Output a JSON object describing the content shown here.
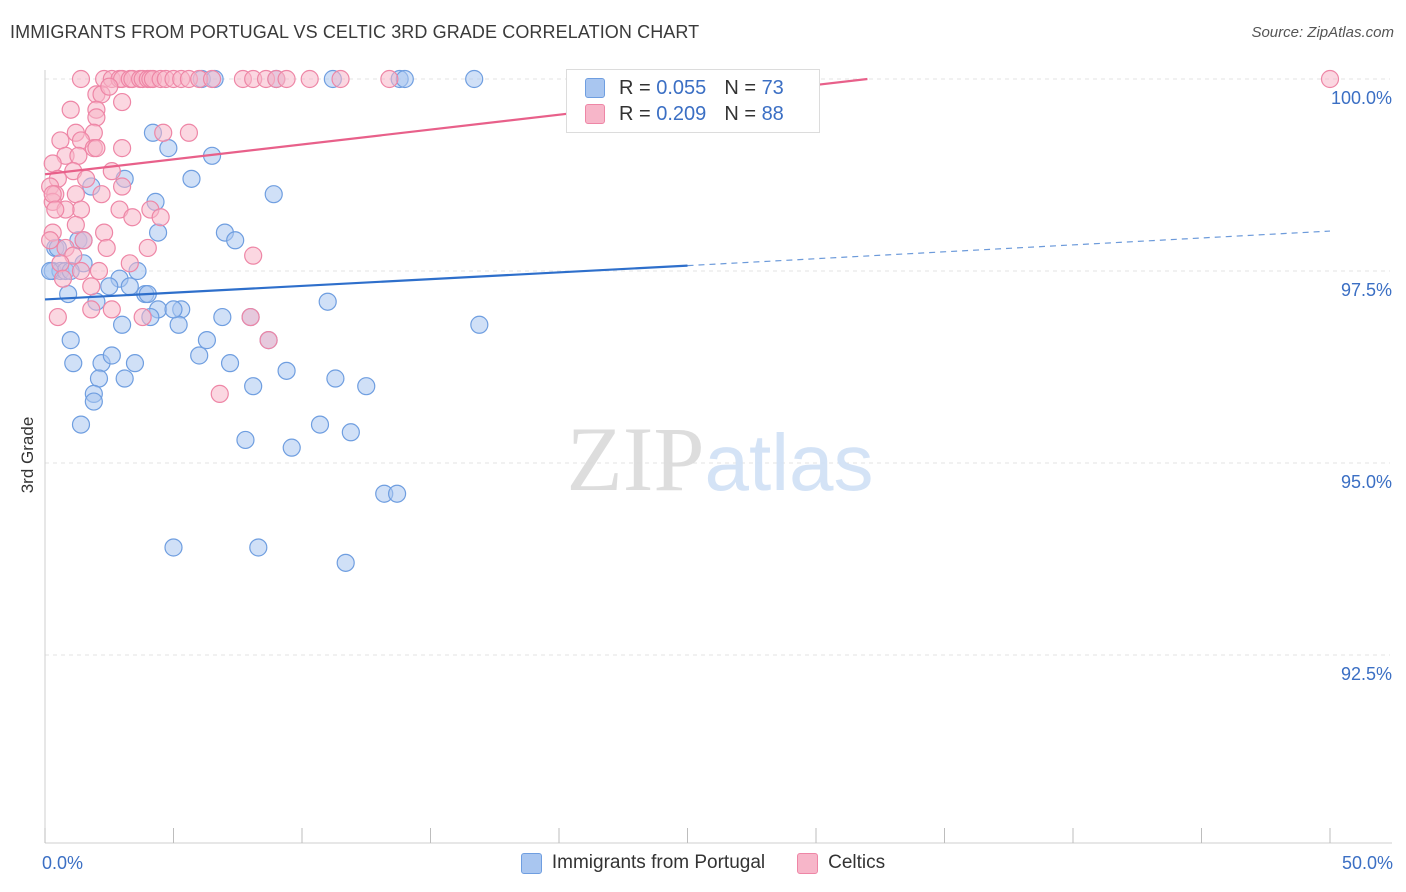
{
  "title": "IMMIGRANTS FROM PORTUGAL VS CELTIC 3RD GRADE CORRELATION CHART",
  "source": "Source: ZipAtlas.com",
  "watermark": {
    "zip": "ZIP",
    "atlas": "atlas"
  },
  "legend": {
    "r_label": "R =",
    "n_label": "N =",
    "rows": [
      {
        "r": "0.055",
        "n": "73",
        "color": "#a9c6f0",
        "border": "#6f9ee0"
      },
      {
        "r": "0.209",
        "n": "88",
        "color": "#f7b6c9",
        "border": "#ee86a6"
      }
    ]
  },
  "bottom_legend": [
    "Immigrants from Portugal",
    "Celtics"
  ],
  "chart_data": {
    "type": "scatter",
    "xlabel": "",
    "ylabel": "3rd Grade",
    "xlim": [
      0,
      50
    ],
    "ylim": [
      90.2,
      100.4
    ],
    "x_tick_labels": [
      {
        "value": 0,
        "label": "0.0%"
      },
      {
        "value": 50,
        "label": "50.0%"
      }
    ],
    "y_tick_labels": [
      {
        "value": 100,
        "label": "100.0%"
      },
      {
        "value": 97.5,
        "label": "97.5%"
      },
      {
        "value": 95,
        "label": "95.0%"
      },
      {
        "value": 92.5,
        "label": "92.5%"
      }
    ],
    "series": [
      {
        "name": "Immigrants from Portugal",
        "color": "#6f9ee0",
        "fill": "#a9c6f0",
        "trend_color": "#2e6fcb",
        "trend": {
          "x0": 0,
          "y0": 97.13,
          "x1": 25,
          "y1": 97.57,
          "dash_x1": 50,
          "dash_y1": 98.02
        },
        "points": [
          [
            4.2,
            99.3
          ],
          [
            4.8,
            99.1
          ],
          [
            6.5,
            99.0
          ],
          [
            1.8,
            98.6
          ],
          [
            3.1,
            98.7
          ],
          [
            4.3,
            98.4
          ],
          [
            5.7,
            98.7
          ],
          [
            8.9,
            98.5
          ],
          [
            7.0,
            98.0
          ],
          [
            1.3,
            97.9
          ],
          [
            4.4,
            98.0
          ],
          [
            7.4,
            97.9
          ],
          [
            0.4,
            97.8
          ],
          [
            0.3,
            97.5
          ],
          [
            0.6,
            97.5
          ],
          [
            0.8,
            97.5
          ],
          [
            1.5,
            97.6
          ],
          [
            2.9,
            97.4
          ],
          [
            3.6,
            97.5
          ],
          [
            0.9,
            97.2
          ],
          [
            2.5,
            97.3
          ],
          [
            3.3,
            97.3
          ],
          [
            3.9,
            97.2
          ],
          [
            11.0,
            97.1
          ],
          [
            4.4,
            97.0
          ],
          [
            5.3,
            97.0
          ],
          [
            6.9,
            96.9
          ],
          [
            8.0,
            96.9
          ],
          [
            3.0,
            96.8
          ],
          [
            5.2,
            96.8
          ],
          [
            6.3,
            96.6
          ],
          [
            8.7,
            96.6
          ],
          [
            16.9,
            96.8
          ],
          [
            4.1,
            96.9
          ],
          [
            1.0,
            96.6
          ],
          [
            1.1,
            96.3
          ],
          [
            2.2,
            96.3
          ],
          [
            2.6,
            96.4
          ],
          [
            3.5,
            96.3
          ],
          [
            7.2,
            96.3
          ],
          [
            2.1,
            96.1
          ],
          [
            3.1,
            96.1
          ],
          [
            8.1,
            96.0
          ],
          [
            9.4,
            96.2
          ],
          [
            11.3,
            96.1
          ],
          [
            12.5,
            96.0
          ],
          [
            1.9,
            95.9
          ],
          [
            1.9,
            95.8
          ],
          [
            1.4,
            95.5
          ],
          [
            10.7,
            95.5
          ],
          [
            11.9,
            95.4
          ],
          [
            7.8,
            95.3
          ],
          [
            9.6,
            95.2
          ],
          [
            13.2,
            94.6
          ],
          [
            13.7,
            94.6
          ],
          [
            5.0,
            93.9
          ],
          [
            8.3,
            93.9
          ],
          [
            11.7,
            93.7
          ],
          [
            6.1,
            100.0
          ],
          [
            6.6,
            100.0
          ],
          [
            9.0,
            100.0
          ],
          [
            11.2,
            100.0
          ],
          [
            13.8,
            100.0
          ],
          [
            14.0,
            100.0
          ],
          [
            16.7,
            100.0
          ],
          [
            0.2,
            97.5
          ],
          [
            0.5,
            97.8
          ],
          [
            1.0,
            97.5
          ],
          [
            1.5,
            97.9
          ],
          [
            2.0,
            97.1
          ],
          [
            4.0,
            97.2
          ],
          [
            5.0,
            97.0
          ],
          [
            6.0,
            96.4
          ]
        ]
      },
      {
        "name": "Celtics",
        "color": "#ee86a6",
        "fill": "#f7b6c9",
        "trend_color": "#e8608a",
        "trend": {
          "x0": 0,
          "y0": 98.76,
          "x1": 32,
          "y1": 100.0
        },
        "points": [
          [
            2.3,
            100.0
          ],
          [
            2.6,
            100.0
          ],
          [
            2.9,
            100.0
          ],
          [
            3.0,
            100.0
          ],
          [
            3.3,
            100.0
          ],
          [
            3.4,
            100.0
          ],
          [
            3.7,
            100.0
          ],
          [
            3.8,
            100.0
          ],
          [
            4.0,
            100.0
          ],
          [
            4.1,
            100.0
          ],
          [
            4.2,
            100.0
          ],
          [
            4.5,
            100.0
          ],
          [
            4.7,
            100.0
          ],
          [
            5.0,
            100.0
          ],
          [
            5.3,
            100.0
          ],
          [
            5.6,
            100.0
          ],
          [
            6.0,
            100.0
          ],
          [
            6.5,
            100.0
          ],
          [
            7.7,
            100.0
          ],
          [
            8.1,
            100.0
          ],
          [
            8.6,
            100.0
          ],
          [
            9.0,
            100.0
          ],
          [
            9.4,
            100.0
          ],
          [
            10.3,
            100.0
          ],
          [
            11.5,
            100.0
          ],
          [
            13.4,
            100.0
          ],
          [
            1.4,
            100.0
          ],
          [
            2.0,
            99.8
          ],
          [
            2.2,
            99.8
          ],
          [
            2.5,
            99.9
          ],
          [
            3.0,
            99.7
          ],
          [
            1.0,
            99.6
          ],
          [
            2.0,
            99.6
          ],
          [
            2.0,
            99.5
          ],
          [
            1.9,
            99.3
          ],
          [
            1.2,
            99.3
          ],
          [
            4.6,
            99.3
          ],
          [
            5.6,
            99.3
          ],
          [
            0.6,
            99.2
          ],
          [
            1.4,
            99.2
          ],
          [
            1.9,
            99.1
          ],
          [
            2.0,
            99.1
          ],
          [
            3.0,
            99.1
          ],
          [
            0.8,
            99.0
          ],
          [
            1.3,
            99.0
          ],
          [
            0.3,
            98.9
          ],
          [
            1.1,
            98.8
          ],
          [
            2.6,
            98.8
          ],
          [
            0.5,
            98.7
          ],
          [
            1.6,
            98.7
          ],
          [
            3.0,
            98.6
          ],
          [
            0.2,
            98.6
          ],
          [
            0.4,
            98.5
          ],
          [
            1.2,
            98.5
          ],
          [
            2.2,
            98.5
          ],
          [
            0.3,
            98.4
          ],
          [
            1.4,
            98.3
          ],
          [
            0.8,
            98.3
          ],
          [
            2.9,
            98.3
          ],
          [
            4.1,
            98.3
          ],
          [
            4.5,
            98.2
          ],
          [
            3.4,
            98.2
          ],
          [
            1.2,
            98.1
          ],
          [
            0.3,
            98.0
          ],
          [
            2.3,
            98.0
          ],
          [
            1.5,
            97.9
          ],
          [
            0.8,
            97.8
          ],
          [
            2.4,
            97.8
          ],
          [
            4.0,
            97.8
          ],
          [
            1.1,
            97.7
          ],
          [
            8.1,
            97.7
          ],
          [
            0.6,
            97.6
          ],
          [
            3.3,
            97.6
          ],
          [
            1.4,
            97.5
          ],
          [
            0.7,
            97.4
          ],
          [
            1.8,
            97.3
          ],
          [
            1.8,
            97.0
          ],
          [
            0.5,
            96.9
          ],
          [
            3.8,
            96.9
          ],
          [
            8.0,
            96.9
          ],
          [
            8.7,
            96.6
          ],
          [
            6.8,
            95.9
          ],
          [
            50.0,
            100.0
          ],
          [
            0.3,
            98.5
          ],
          [
            0.4,
            98.3
          ],
          [
            0.2,
            97.9
          ],
          [
            2.6,
            97.0
          ],
          [
            2.1,
            97.5
          ]
        ]
      }
    ]
  }
}
